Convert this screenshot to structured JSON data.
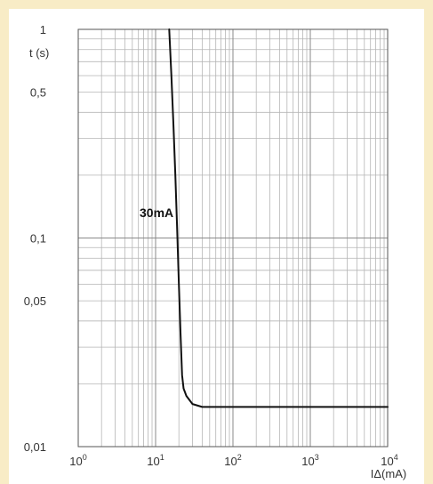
{
  "chart_data": {
    "type": "line",
    "title": "",
    "xlabel": "IΔ(mA)",
    "ylabel": "t (s)",
    "x_scale": "log",
    "y_scale": "log",
    "xlim": [
      1,
      10000
    ],
    "ylim": [
      0.01,
      1
    ],
    "grid": true,
    "x_ticks": [
      {
        "value": 1,
        "mantissa": "10",
        "exp": "0"
      },
      {
        "value": 10,
        "mantissa": "10",
        "exp": "1"
      },
      {
        "value": 100,
        "mantissa": "10",
        "exp": "2"
      },
      {
        "value": 1000,
        "mantissa": "10",
        "exp": "3"
      },
      {
        "value": 10000,
        "mantissa": "10",
        "exp": "4"
      }
    ],
    "y_ticks": [
      {
        "value": 1,
        "label": "1"
      },
      {
        "value": 0.5,
        "label": "0,5"
      },
      {
        "value": 0.1,
        "label": "0,1"
      },
      {
        "value": 0.05,
        "label": "0,05"
      },
      {
        "value": 0.01,
        "label": "0,01"
      }
    ],
    "series": [
      {
        "name": "30mA",
        "color": "#111111",
        "x": [
          15,
          16,
          17,
          18,
          19,
          20,
          21,
          22,
          23,
          25,
          30,
          40,
          60,
          100,
          1000,
          10000
        ],
        "y": [
          1,
          0.6,
          0.35,
          0.2,
          0.11,
          0.06,
          0.035,
          0.022,
          0.019,
          0.0175,
          0.016,
          0.0155,
          0.0155,
          0.0155,
          0.0155,
          0.0155
        ]
      }
    ]
  }
}
